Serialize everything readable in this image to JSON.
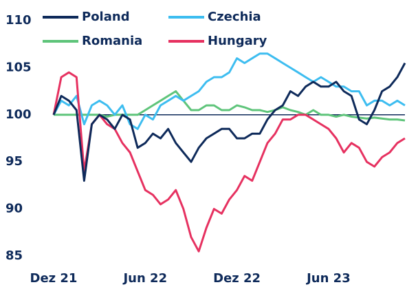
{
  "chart_data": {
    "type": "line",
    "categories": [
      "Dez 21",
      null,
      null,
      null,
      null,
      null,
      null,
      null,
      null,
      null,
      null,
      null,
      "Jun 22",
      null,
      null,
      null,
      null,
      null,
      null,
      null,
      null,
      null,
      null,
      null,
      "Dez 22",
      null,
      null,
      null,
      null,
      null,
      null,
      null,
      null,
      null,
      null,
      null,
      "Jun 23",
      null,
      null,
      null,
      null,
      null,
      null,
      null,
      null,
      null,
      null
    ],
    "series": [
      {
        "name": "Poland",
        "color": "#0e2a5a",
        "values": [
          100,
          102,
          101.5,
          100.5,
          93,
          99,
          100,
          99.5,
          98.5,
          100,
          99.5,
          96.5,
          97,
          98,
          97.5,
          98.5,
          97,
          96,
          95,
          96.5,
          97.5,
          98,
          98.5,
          98.5,
          97.5,
          97.5,
          98,
          98,
          99.5,
          100.5,
          101,
          102.5,
          102,
          103,
          103.5,
          103,
          103,
          103.5,
          102.5,
          102,
          99.5,
          99,
          100.5,
          102.5,
          103,
          104,
          105.5
        ]
      },
      {
        "name": "Czechia",
        "color": "#3dbdf0",
        "values": [
          100,
          101.5,
          101,
          102,
          99,
          101,
          101.5,
          101,
          100,
          101,
          99,
          98.5,
          100,
          99.5,
          101,
          101.5,
          102,
          101.5,
          102,
          102.5,
          103.5,
          104,
          104,
          104.5,
          106,
          105.5,
          106,
          106.5,
          106.5,
          106,
          105.5,
          105,
          104.5,
          104,
          103.5,
          104,
          103.5,
          103,
          103,
          102.5,
          102.5,
          101,
          101.5,
          101.5,
          101,
          101.5,
          101
        ]
      },
      {
        "name": "Romania",
        "color": "#5ec47a",
        "values": [
          100,
          100,
          100,
          100,
          100,
          100,
          100,
          99.8,
          100,
          100,
          100,
          100,
          100.5,
          101,
          101.5,
          102,
          102.5,
          101.5,
          100.5,
          100.5,
          101,
          101,
          100.5,
          100.5,
          101,
          100.8,
          100.5,
          100.5,
          100.3,
          100.5,
          100.8,
          100.5,
          100.3,
          100,
          100.5,
          100,
          100,
          99.8,
          100,
          99.8,
          99.7,
          99.6,
          99.7,
          99.6,
          99.5,
          99.5,
          99.4
        ]
      },
      {
        "name": "Hungary",
        "color": "#e63160",
        "values": [
          100,
          104,
          104.5,
          104,
          94,
          99,
          100,
          99,
          98.5,
          97,
          96,
          94,
          92,
          91.5,
          90.5,
          91,
          92,
          90,
          87,
          85.5,
          88,
          90,
          89.5,
          91,
          92,
          93.5,
          93,
          95,
          97,
          98,
          99.5,
          99.5,
          100,
          100,
          99.5,
          99,
          98.5,
          97.5,
          96,
          97,
          96.5,
          95,
          94.5,
          95.5,
          96,
          97,
          97.5
        ]
      }
    ],
    "ylim": [
      85,
      110
    ],
    "yticks": [
      85,
      90,
      95,
      100,
      105,
      110
    ],
    "hline": 100
  }
}
